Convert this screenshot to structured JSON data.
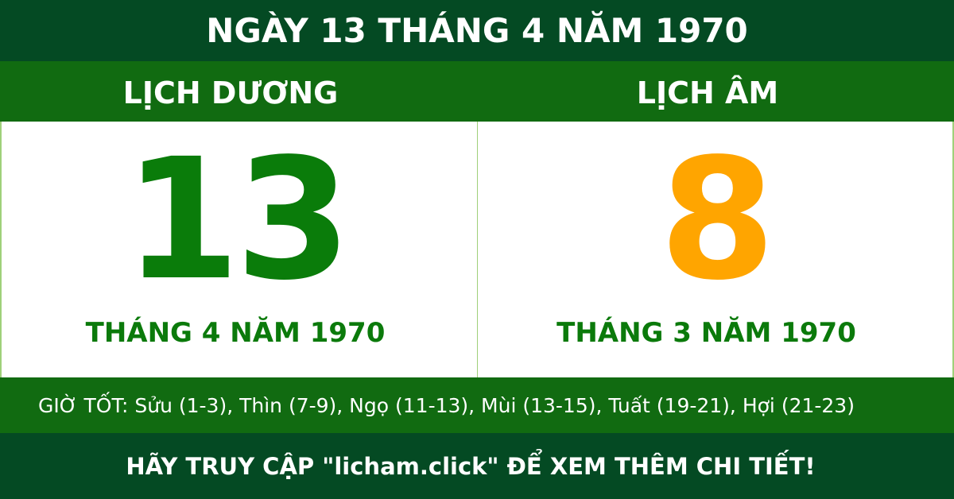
{
  "title": "NGÀY 13 THÁNG 4 NĂM 1970",
  "solar": {
    "label": "LỊCH DƯƠNG",
    "day": "13",
    "month_year": "THÁNG 4 NĂM 1970"
  },
  "lunar": {
    "label": "LỊCH ÂM",
    "day": "8",
    "month_year": "THÁNG 3 NĂM 1970"
  },
  "good_hours": "GIỜ TỐT: Sửu (1-3), Thìn (7-9), Ngọ (11-13), Mùi (13-15), Tuất (19-21), Hợi (21-23)",
  "footer": "HÃY TRUY CẬP \"licham.click\" ĐỂ XEM THÊM CHI TIẾT!",
  "colors": {
    "dark_green": "#044a23",
    "green": "#116b11",
    "solar_day": "#0a7c0a",
    "lunar_day": "#ffa500"
  }
}
